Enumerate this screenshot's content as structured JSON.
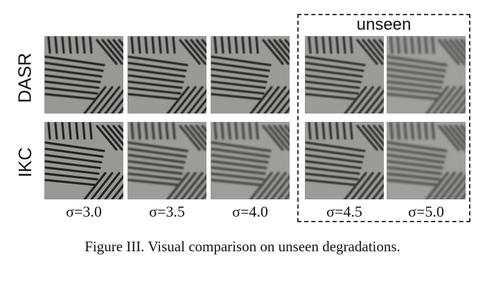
{
  "figure": {
    "row_labels": [
      "DASR",
      "IKC"
    ],
    "column_labels": [
      "σ=3.0",
      "σ=3.5",
      "σ=4.0",
      "σ=4.5",
      "σ=5.0"
    ],
    "unseen_label": "unseen",
    "caption": "Figure III. Visual comparison on unseen degradations.",
    "tile_blur_levels": [
      [
        0.4,
        0.5,
        0.6,
        0.9,
        1.6
      ],
      [
        0.3,
        1.0,
        1.3,
        0.9,
        1.5
      ]
    ]
  }
}
